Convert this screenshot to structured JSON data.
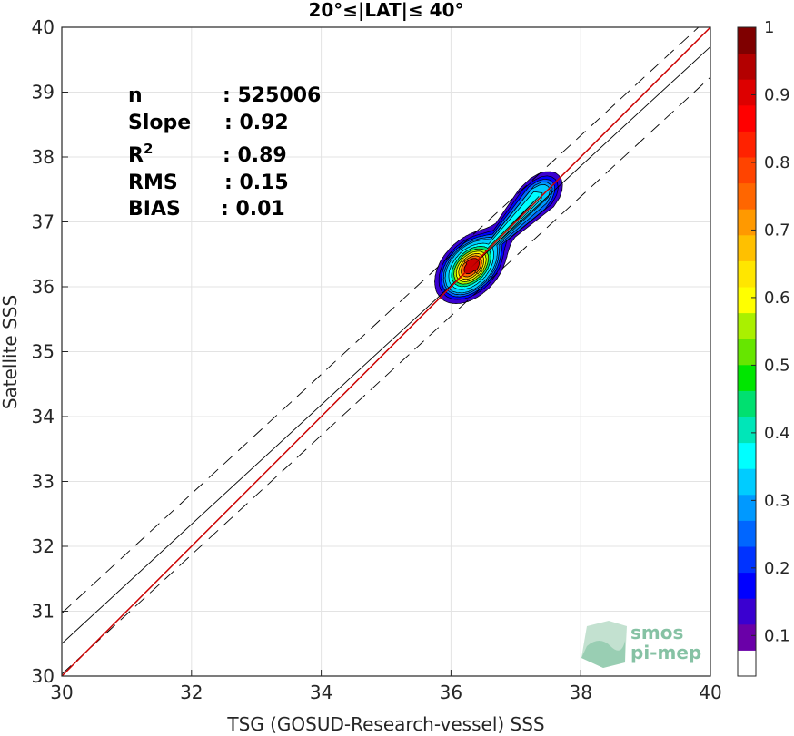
{
  "chart_data": {
    "type": "heatmap",
    "title": "20°≤|LAT|≤ 40°",
    "xlabel": "TSG (GOSUD-Research-vessel) SSS",
    "ylabel": "Satellite SSS",
    "xlim": [
      30,
      40
    ],
    "ylim": [
      30,
      40
    ],
    "xticks": [
      30,
      32,
      34,
      36,
      38,
      40
    ],
    "yticks": [
      30,
      31,
      32,
      33,
      34,
      35,
      36,
      37,
      38,
      39,
      40
    ],
    "grid": true,
    "stats": [
      {
        "label": "n",
        "value": ": 525006"
      },
      {
        "label": "Slope",
        "value": ": 0.92"
      },
      {
        "label": "R",
        "sup": "2",
        "value": ": 0.89"
      },
      {
        "label": "RMS",
        "value": ": 0.15"
      },
      {
        "label": "BIAS",
        "value": ": 0.01"
      }
    ],
    "lines": {
      "identity": {
        "slope": 1.0,
        "intercept": 0.0,
        "color": "#cc0000"
      },
      "fit": {
        "slope": 0.92,
        "intercept": 2.9,
        "color": "#000000"
      },
      "fit_upper": {
        "slope": 0.92,
        "intercept": 3.37,
        "color": "#000000",
        "dashed": true
      },
      "fit_lower": {
        "slope": 0.92,
        "intercept": 2.43,
        "color": "#000000",
        "dashed": true
      }
    },
    "density_peaks": [
      {
        "x": 36.3,
        "y": 36.3,
        "amplitude": 1.0
      },
      {
        "x": 37.35,
        "y": 37.4,
        "amplitude": 0.32
      }
    ],
    "colorbar": {
      "ticks": [
        "0.1",
        "0.2",
        "0.3",
        "0.4",
        "0.5",
        "0.6",
        "0.7",
        "0.8",
        "0.9",
        "1"
      ],
      "colors": [
        "#ffffff",
        "#6a00a8",
        "#3a00d0",
        "#0000ff",
        "#0033ff",
        "#0066ff",
        "#0099ff",
        "#00ccff",
        "#00ffff",
        "#00e6b8",
        "#00e070",
        "#00e600",
        "#66e600",
        "#aaf000",
        "#ffff00",
        "#ffe600",
        "#ffc000",
        "#ff9900",
        "#ff6600",
        "#ff4400",
        "#ff2200",
        "#ff0000",
        "#dd0000",
        "#b30000",
        "#7f0000"
      ]
    }
  },
  "logo": {
    "line1": "smos",
    "line2": "pi-mep"
  }
}
